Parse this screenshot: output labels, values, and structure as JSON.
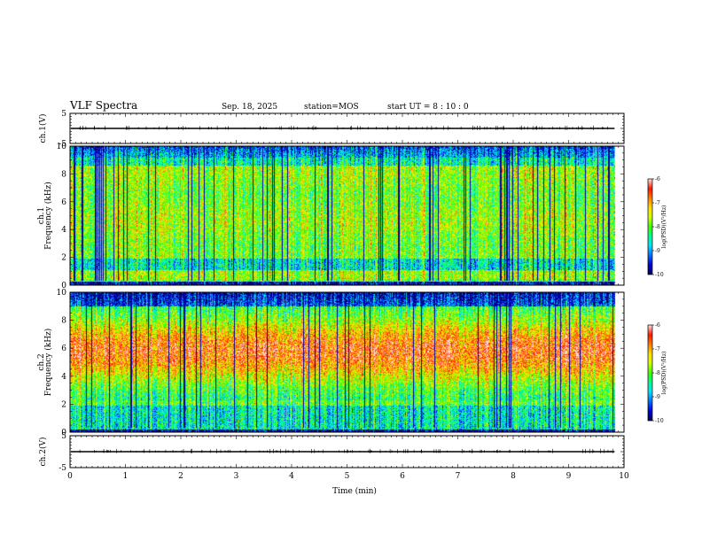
{
  "header": {
    "title": "VLF Spectra",
    "date": "Sep. 18, 2025",
    "station": "station=MOS",
    "start": "start  UT  =   8  : 10 : 0"
  },
  "chart_data": {
    "type": "heatmap",
    "xlabel": "Time (min)",
    "xlim": [
      0,
      10
    ],
    "x_ticks": [
      "0",
      "1",
      "2",
      "3",
      "4",
      "5",
      "6",
      "7",
      "8",
      "9",
      "10"
    ],
    "data_end_min": 9.83,
    "panels": [
      {
        "id": "ch1-waveform",
        "kind": "waveform",
        "ylabel": "ch.1(V)",
        "ylim": [
          -5,
          5
        ],
        "y_ticks": [
          "5",
          "-5"
        ],
        "trace_level": 0
      },
      {
        "id": "ch1-spectrogram",
        "kind": "spectrogram",
        "ylabel_top": "ch.1",
        "ylabel": "Frequency (kHz)",
        "ylim": [
          0,
          10
        ],
        "y_ticks": [
          "0",
          "2",
          "4",
          "6",
          "8",
          "10"
        ],
        "profile": "ch1",
        "colorbar": {
          "label": "log(PSD)(V²/Hz)",
          "range": [
            -10,
            -6
          ],
          "ticks": [
            "-6",
            "-7",
            "-8",
            "-9",
            "-10"
          ]
        }
      },
      {
        "id": "ch2-spectrogram",
        "kind": "spectrogram",
        "ylabel_top": "ch.2",
        "ylabel": "Frequency (kHz)",
        "ylim": [
          0,
          10
        ],
        "y_ticks": [
          "0",
          "2",
          "4",
          "6",
          "8",
          "10"
        ],
        "profile": "ch2",
        "colorbar": {
          "label": "log(PSD)(V²/Hz)",
          "range": [
            -10,
            -6
          ],
          "ticks": [
            "-6",
            "-7",
            "-8",
            "-9",
            "-10"
          ]
        }
      },
      {
        "id": "ch2-waveform",
        "kind": "waveform",
        "ylabel": "ch.2(V)",
        "ylim": [
          -5,
          5
        ],
        "y_ticks": [
          "5",
          "-5"
        ],
        "trace_level": 0
      }
    ],
    "colormap": [
      "#00005a",
      "#0000d8",
      "#0070ff",
      "#00e0ff",
      "#00ff90",
      "#40ff00",
      "#d0ff00",
      "#ffe000",
      "#ff8000",
      "#ff1800",
      "#ffd8d8"
    ]
  }
}
